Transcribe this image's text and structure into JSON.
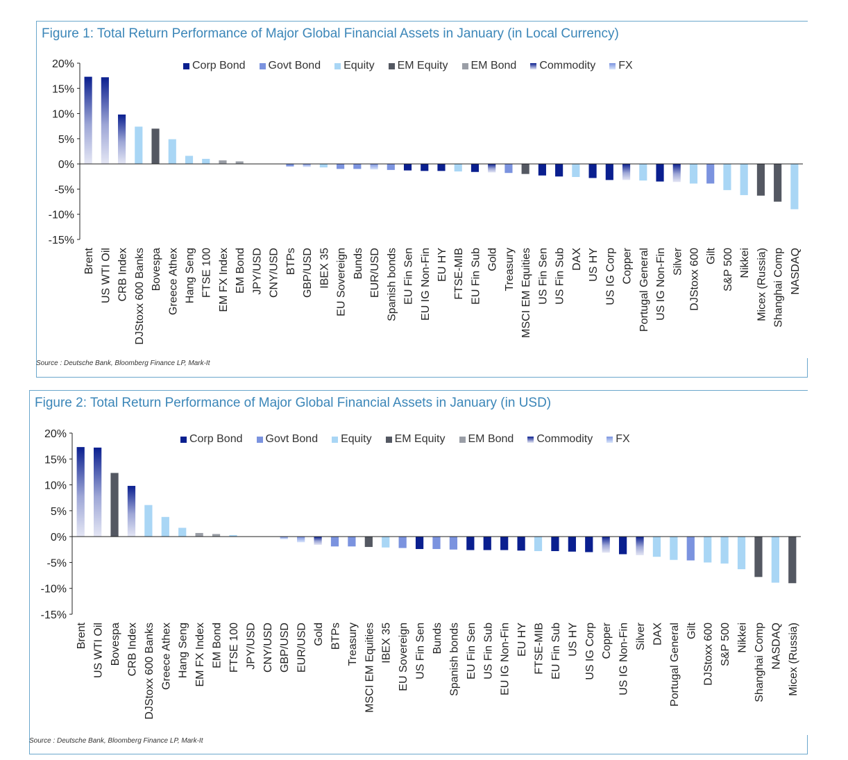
{
  "figures": [
    {
      "title": "Figure 1: Total Return Performance of Major Global Financial Assets in January (in Local Currency)",
      "source": "Source : Deutsche Bank, Bloomberg Finance LP, Mark-It"
    },
    {
      "title": "Figure 2: Total Return Performance of Major Global Financial Assets in January (in USD)",
      "source": "Source : Deutsche Bank, Bloomberg Finance LP, Mark-It"
    }
  ],
  "legend": [
    {
      "name": "Corp Bond",
      "color": "#0a1f8f"
    },
    {
      "name": "Govt Bond",
      "color": "#7b93df"
    },
    {
      "name": "Equity",
      "color": "#a9d6f5"
    },
    {
      "name": "EM Equity",
      "color": "#545862"
    },
    {
      "name": "EM Bond",
      "color": "#9a9ea6"
    },
    {
      "name": "Commodity",
      "color": "#0a1f8f"
    },
    {
      "name": "FX",
      "color": "#7b93df"
    }
  ],
  "colors": {
    "Corp Bond": "#0a1f8f",
    "Govt Bond": "#7b93df",
    "Equity": "#a9d6f5",
    "EM Equity": "#545862",
    "EM Bond": "#9a9ea6",
    "Commodity": "commodity-gradient",
    "FX": "fx-gradient",
    "frame": "#6aa7cc",
    "title": "#3b86b8"
  },
  "chart_data": [
    {
      "type": "bar",
      "title": "Figure 1: Total Return Performance of Major Global Financial Assets in January (in Local Currency)",
      "ylim": [
        -15,
        20
      ],
      "yticks": [
        "20%",
        "15%",
        "10%",
        "5%",
        "0%",
        "-5%",
        "-10%",
        "-15%"
      ],
      "legend_position": "top",
      "categories": [
        "Brent",
        "US WTI Oil",
        "CRB Index",
        "DJStoxx 600 Banks",
        "Bovespa",
        "Greece Athex",
        "Hang Seng",
        "FTSE 100",
        "EM FX Index",
        "EM Bond",
        "JPY/USD",
        "CNY/USD",
        "BTPs",
        "GBP/USD",
        "IBEX 35",
        "EU Sovereign",
        "Bunds",
        "EUR/USD",
        "Spanish bonds",
        "EU Fin Sen",
        "EU IG Non-Fin",
        "EU HY",
        "FTSE-MIB",
        "EU Fin Sub",
        "Gold",
        "Treasury",
        "MSCI EM Equities",
        "US Fin Sen",
        "US Fin Sub",
        "DAX",
        "US HY",
        "US IG Corp",
        "Copper",
        "Portugal General",
        "US IG Non-Fin",
        "Silver",
        "DJStoxx 600",
        "Gilt",
        "S&P 500",
        "Nikkei",
        "Micex (Russia)",
        "Shanghai Comp",
        "NASDAQ"
      ],
      "values": [
        17.3,
        17.2,
        9.8,
        7.4,
        7.0,
        4.9,
        1.6,
        1.0,
        0.7,
        0.5,
        0.0,
        0.0,
        -0.5,
        -0.6,
        -0.7,
        -1.0,
        -1.0,
        -1.1,
        -1.2,
        -1.3,
        -1.4,
        -1.4,
        -1.5,
        -1.6,
        -1.7,
        -1.8,
        -2.0,
        -2.3,
        -2.5,
        -2.6,
        -2.8,
        -3.2,
        -3.2,
        -3.3,
        -3.5,
        -3.6,
        -3.9,
        -3.9,
        -5.2,
        -6.2,
        -6.3,
        -7.5,
        -9.0
      ],
      "asset_class": [
        "Commodity",
        "Commodity",
        "Commodity",
        "Equity",
        "EM Equity",
        "Equity",
        "Equity",
        "Equity",
        "EM Bond",
        "EM Bond",
        "FX",
        "FX",
        "Govt Bond",
        "FX",
        "Equity",
        "Govt Bond",
        "Govt Bond",
        "FX",
        "Govt Bond",
        "Corp Bond",
        "Corp Bond",
        "Corp Bond",
        "Equity",
        "Corp Bond",
        "Commodity",
        "Govt Bond",
        "EM Equity",
        "Corp Bond",
        "Corp Bond",
        "Equity",
        "Corp Bond",
        "Corp Bond",
        "Commodity",
        "Equity",
        "Corp Bond",
        "Commodity",
        "Equity",
        "Govt Bond",
        "Equity",
        "Equity",
        "EM Equity",
        "EM Equity",
        "Equity"
      ]
    },
    {
      "type": "bar",
      "title": "Figure 2: Total Return Performance of Major Global Financial Assets in January (in USD)",
      "ylim": [
        -15,
        20
      ],
      "yticks": [
        "20%",
        "15%",
        "10%",
        "5%",
        "0%",
        "-5%",
        "-10%",
        "-15%"
      ],
      "legend_position": "top",
      "categories": [
        "Brent",
        "US WTI Oil",
        "Bovespa",
        "CRB Index",
        "DJStoxx 600 Banks",
        "Greece Athex",
        "Hang Seng",
        "EM FX Index",
        "EM Bond",
        "FTSE 100",
        "JPY/USD",
        "CNY/USD",
        "GBP/USD",
        "EUR/USD",
        "Gold",
        "BTPs",
        "Treasury",
        "MSCI EM Equities",
        "IBEX 35",
        "EU Sovereign",
        "US Fin Sen",
        "Bunds",
        "Spanish bonds",
        "EU Fin Sen",
        "US Fin Sub",
        "EU IG Non-Fin",
        "EU HY",
        "FTSE-MIB",
        "EU Fin Sub",
        "US HY",
        "US IG Corp",
        "Copper",
        "US IG Non-Fin",
        "Silver",
        "DAX",
        "Portugal General",
        "Gilt",
        "DJStoxx 600",
        "S&P 500",
        "Nikkei",
        "Shanghai Comp",
        "NASDAQ",
        "Micex (Russia)"
      ],
      "values": [
        17.3,
        17.2,
        12.3,
        9.8,
        6.1,
        3.8,
        1.7,
        0.7,
        0.5,
        0.3,
        0.0,
        0.0,
        -0.5,
        -1.1,
        -1.6,
        -1.9,
        -1.9,
        -2.0,
        -2.1,
        -2.2,
        -2.4,
        -2.4,
        -2.5,
        -2.6,
        -2.6,
        -2.6,
        -2.7,
        -2.8,
        -2.8,
        -2.9,
        -3.0,
        -3.1,
        -3.4,
        -3.6,
        -3.9,
        -4.5,
        -4.6,
        -5.0,
        -5.2,
        -6.3,
        -7.8,
        -8.9,
        -9.0
      ],
      "asset_class": [
        "Commodity",
        "Commodity",
        "EM Equity",
        "Commodity",
        "Equity",
        "Equity",
        "Equity",
        "EM Bond",
        "EM Bond",
        "Equity",
        "FX",
        "FX",
        "FX",
        "FX",
        "Commodity",
        "Govt Bond",
        "Govt Bond",
        "EM Equity",
        "Equity",
        "Govt Bond",
        "Corp Bond",
        "Govt Bond",
        "Govt Bond",
        "Corp Bond",
        "Corp Bond",
        "Corp Bond",
        "Corp Bond",
        "Equity",
        "Corp Bond",
        "Corp Bond",
        "Corp Bond",
        "Commodity",
        "Corp Bond",
        "Commodity",
        "Equity",
        "Equity",
        "Govt Bond",
        "Equity",
        "Equity",
        "Equity",
        "EM Equity",
        "Equity",
        "EM Equity"
      ]
    }
  ]
}
